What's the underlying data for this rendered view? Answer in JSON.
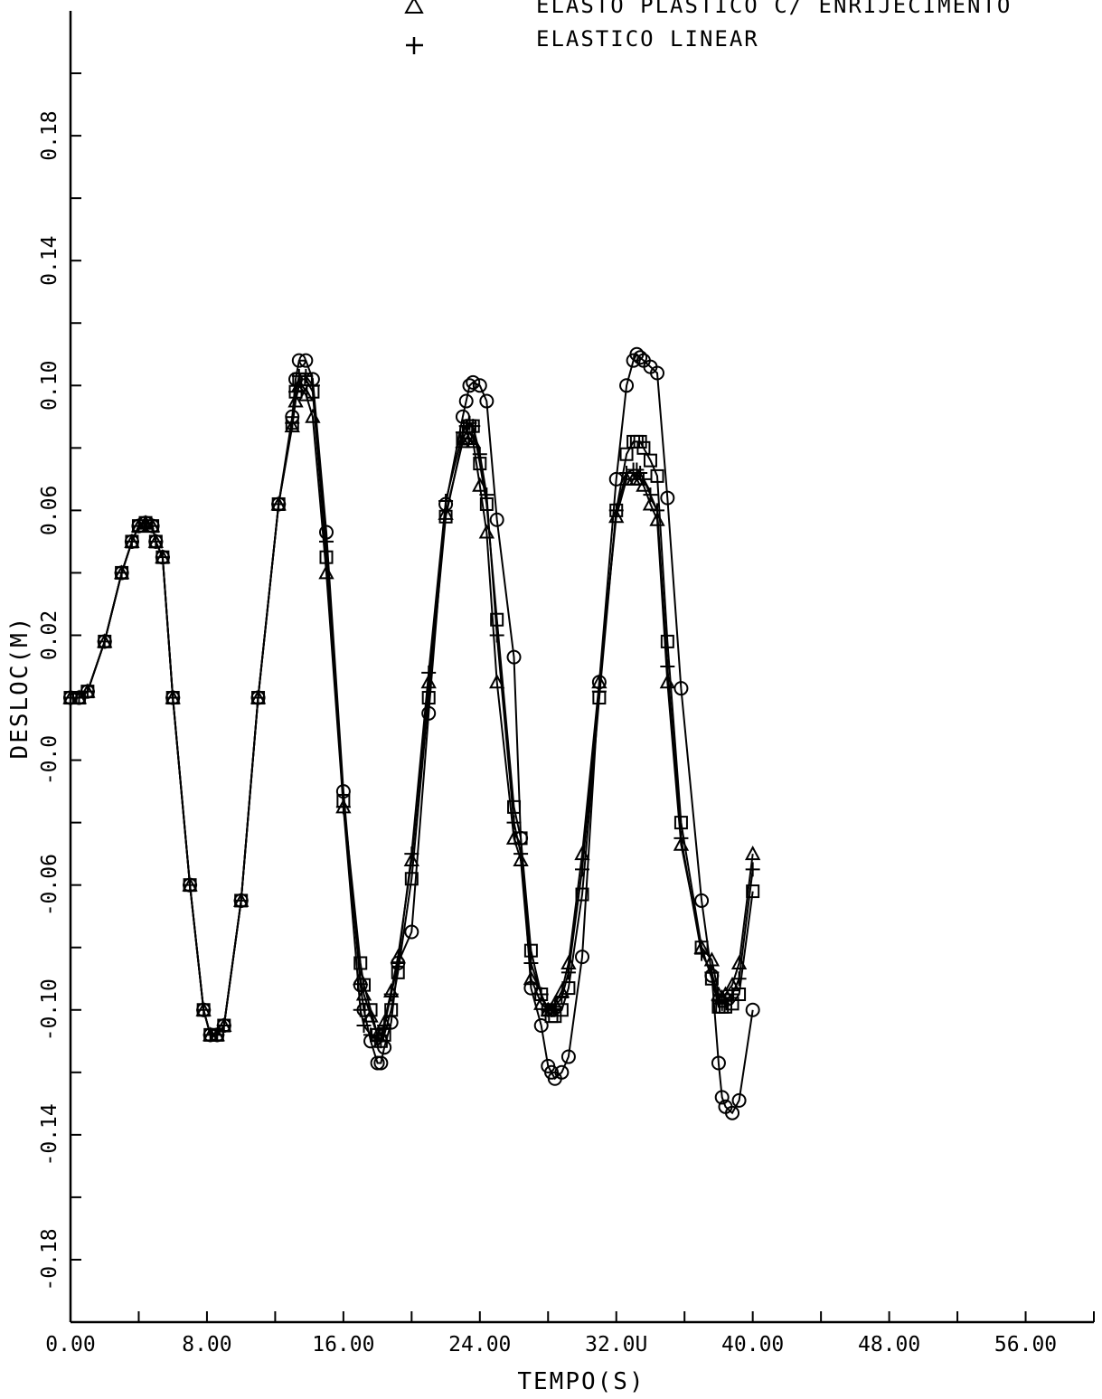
{
  "chart_data": {
    "type": "line",
    "title": "",
    "xlabel": "TEMPO(S)",
    "ylabel": "DESLOC(M)",
    "xlim": [
      0,
      60
    ],
    "ylim": [
      -0.2,
      0.22
    ],
    "grid": false,
    "legend_placement": "top-center",
    "x_ticks": [
      {
        "value": 0,
        "label": "0.00"
      },
      {
        "value": 8,
        "label": "8.00"
      },
      {
        "value": 16,
        "label": "16.00"
      },
      {
        "value": 24,
        "label": "24.00"
      },
      {
        "value": 32,
        "label": "32.0U"
      },
      {
        "value": 40,
        "label": "40.00"
      },
      {
        "value": 48,
        "label": "48.00"
      },
      {
        "value": 56,
        "label": "56.00"
      }
    ],
    "x_minor_ticks": [
      4,
      12,
      20,
      28,
      36,
      44,
      52,
      60
    ],
    "y_ticks": [
      {
        "value": 0.18,
        "label": "0.18"
      },
      {
        "value": 0.14,
        "label": "0.14"
      },
      {
        "value": 0.1,
        "label": "0.10"
      },
      {
        "value": 0.06,
        "label": "0.06"
      },
      {
        "value": 0.02,
        "label": "0.02"
      },
      {
        "value": -0.02,
        "label": "-0.0"
      },
      {
        "value": -0.06,
        "label": "-0.06"
      },
      {
        "value": -0.1,
        "label": "-0.10"
      },
      {
        "value": -0.14,
        "label": "-0.14"
      },
      {
        "value": -0.18,
        "label": "-0.18"
      }
    ],
    "y_minor_ticks": [
      0.2,
      0.16,
      0.12,
      0.08,
      0.04,
      0.0,
      -0.04,
      -0.08,
      -0.12,
      -0.16
    ],
    "series": [
      {
        "name": "",
        "marker": "circle",
        "color": "#000000",
        "x": [
          0,
          0.5,
          1,
          2,
          3,
          3.6,
          4,
          4.4,
          4.8,
          5,
          5.4,
          6,
          7,
          7.8,
          8.2,
          8.6,
          9,
          10,
          11,
          12.2,
          13,
          13.2,
          13.4,
          13.8,
          14.2,
          15,
          16,
          17,
          17.2,
          17.6,
          18,
          18.2,
          18.4,
          18.8,
          19.2,
          20,
          21,
          22,
          23,
          23.2,
          23.4,
          23.6,
          24,
          24.4,
          25,
          26,
          26.4,
          27,
          27.6,
          28,
          28.2,
          28.4,
          28.8,
          29.2,
          30,
          31,
          32,
          32.6,
          33,
          33.2,
          33.4,
          33.6,
          34,
          34.4,
          35,
          35.8,
          37,
          37.6,
          38,
          38.2,
          38.4,
          38.8,
          39.2,
          40
        ],
        "y": [
          0,
          0,
          0.002,
          0.018,
          0.04,
          0.05,
          0.055,
          0.056,
          0.055,
          0.05,
          0.045,
          0,
          -0.06,
          -0.1,
          -0.108,
          -0.108,
          -0.105,
          -0.065,
          0,
          0.062,
          0.09,
          0.102,
          0.108,
          0.108,
          0.102,
          0.053,
          -0.03,
          -0.092,
          -0.1,
          -0.11,
          -0.117,
          -0.117,
          -0.112,
          -0.104,
          -0.085,
          -0.075,
          -0.005,
          0.062,
          0.09,
          0.095,
          0.1,
          0.101,
          0.1,
          0.095,
          0.057,
          0.013,
          -0.045,
          -0.093,
          -0.105,
          -0.118,
          -0.12,
          -0.122,
          -0.12,
          -0.115,
          -0.083,
          0.005,
          0.07,
          0.1,
          0.108,
          0.11,
          0.109,
          0.108,
          0.106,
          0.104,
          0.064,
          0.003,
          -0.065,
          -0.089,
          -0.117,
          -0.128,
          -0.131,
          -0.133,
          -0.129,
          -0.1
        ]
      },
      {
        "name": "",
        "marker": "square",
        "color": "#000000",
        "x": [
          0,
          0.5,
          1,
          2,
          3,
          3.6,
          4,
          4.4,
          4.8,
          5,
          5.4,
          6,
          7,
          7.8,
          8.2,
          8.6,
          9,
          10,
          11,
          12.2,
          13,
          13.2,
          13.4,
          13.8,
          14.2,
          15,
          16,
          17,
          17.2,
          17.6,
          18,
          18.2,
          18.4,
          18.8,
          19.2,
          20,
          21,
          22,
          23,
          23.2,
          23.4,
          23.6,
          24,
          24.4,
          25,
          26,
          26.4,
          27,
          27.6,
          28,
          28.2,
          28.4,
          28.8,
          29.2,
          30,
          31,
          32,
          32.6,
          33,
          33.2,
          33.4,
          33.6,
          34,
          34.4,
          35,
          35.8,
          37,
          37.6,
          38,
          38.2,
          38.4,
          38.8,
          39.2,
          40
        ],
        "y": [
          0,
          0,
          0.002,
          0.018,
          0.04,
          0.05,
          0.055,
          0.056,
          0.055,
          0.05,
          0.045,
          0,
          -0.06,
          -0.1,
          -0.108,
          -0.108,
          -0.105,
          -0.065,
          0,
          0.062,
          0.088,
          0.098,
          0.102,
          0.102,
          0.098,
          0.045,
          -0.033,
          -0.085,
          -0.092,
          -0.1,
          -0.108,
          -0.11,
          -0.108,
          -0.1,
          -0.088,
          -0.058,
          0,
          0.058,
          0.083,
          0.085,
          0.087,
          0.087,
          0.075,
          0.062,
          0.025,
          -0.035,
          -0.045,
          -0.081,
          -0.095,
          -0.1,
          -0.102,
          -0.102,
          -0.1,
          -0.093,
          -0.063,
          0,
          0.06,
          0.078,
          0.082,
          0.082,
          0.082,
          0.08,
          0.076,
          0.071,
          0.018,
          -0.04,
          -0.08,
          -0.09,
          -0.099,
          -0.099,
          -0.099,
          -0.098,
          -0.095,
          -0.062
        ]
      },
      {
        "name": "ELASTO PLASTICO C/ ENRIJECIMENTO",
        "marker": "triangle",
        "color": "#000000",
        "x": [
          0,
          0.5,
          1,
          2,
          3,
          3.6,
          4,
          4.4,
          4.8,
          5,
          5.4,
          6,
          7,
          7.8,
          8.2,
          8.6,
          9,
          10,
          11,
          12.2,
          13,
          13.2,
          13.4,
          13.8,
          14.2,
          15,
          16,
          17,
          17.2,
          17.6,
          18,
          18.2,
          18.4,
          18.8,
          19.2,
          20,
          21,
          22,
          23,
          23.2,
          23.4,
          23.6,
          24,
          24.4,
          25,
          26,
          26.4,
          27,
          27.6,
          28,
          28.2,
          28.4,
          28.8,
          29.2,
          30,
          31,
          32,
          32.6,
          33,
          33.2,
          33.4,
          33.6,
          34,
          34.4,
          35,
          35.8,
          37,
          37.6,
          38,
          38.2,
          38.4,
          38.8,
          39.2,
          40
        ],
        "y": [
          0,
          0,
          0.002,
          0.018,
          0.04,
          0.05,
          0.055,
          0.056,
          0.055,
          0.05,
          0.045,
          0,
          -0.06,
          -0.1,
          -0.108,
          -0.108,
          -0.105,
          -0.065,
          0,
          0.062,
          0.087,
          0.095,
          0.1,
          0.097,
          0.09,
          0.04,
          -0.035,
          -0.09,
          -0.095,
          -0.102,
          -0.108,
          -0.108,
          -0.104,
          -0.094,
          -0.083,
          -0.052,
          0.005,
          0.059,
          0.082,
          0.083,
          0.083,
          0.082,
          0.068,
          0.053,
          0.005,
          -0.045,
          -0.052,
          -0.09,
          -0.098,
          -0.1,
          -0.1,
          -0.098,
          -0.094,
          -0.085,
          -0.05,
          0.005,
          0.058,
          0.07,
          0.07,
          0.07,
          0.07,
          0.068,
          0.062,
          0.057,
          0.005,
          -0.047,
          -0.08,
          -0.084,
          -0.095,
          -0.096,
          -0.095,
          -0.092,
          -0.085,
          -0.05
        ]
      },
      {
        "name": "ELASTICO LINEAR",
        "marker": "plus",
        "color": "#000000",
        "x": [
          0,
          0.5,
          1,
          2,
          3,
          3.6,
          4,
          4.4,
          4.8,
          5,
          5.4,
          6,
          7,
          7.8,
          8.2,
          8.6,
          9,
          10,
          11,
          12.2,
          13,
          13.2,
          13.4,
          13.8,
          14.2,
          15,
          16,
          17,
          17.2,
          17.6,
          18,
          18.2,
          18.4,
          18.8,
          19.2,
          20,
          21,
          22,
          23,
          23.2,
          23.4,
          23.6,
          24,
          24.4,
          25,
          26,
          26.4,
          27,
          27.6,
          28,
          28.2,
          28.4,
          28.8,
          29.2,
          30,
          31,
          32,
          32.6,
          33,
          33.2,
          33.4,
          33.6,
          34,
          34.4,
          35,
          35.8,
          37,
          37.6,
          38,
          38.2,
          38.4,
          38.8,
          39.2,
          40
        ],
        "y": [
          0,
          0,
          0.002,
          0.018,
          0.04,
          0.05,
          0.055,
          0.056,
          0.055,
          0.05,
          0.045,
          0,
          -0.06,
          -0.1,
          -0.108,
          -0.108,
          -0.105,
          -0.065,
          0,
          0.062,
          0.088,
          0.098,
          0.103,
          0.103,
          0.1,
          0.05,
          -0.035,
          -0.1,
          -0.105,
          -0.108,
          -0.11,
          -0.11,
          -0.105,
          -0.095,
          -0.085,
          -0.05,
          0.008,
          0.063,
          0.085,
          0.087,
          0.088,
          0.087,
          0.078,
          0.065,
          0.02,
          -0.04,
          -0.05,
          -0.085,
          -0.095,
          -0.1,
          -0.1,
          -0.099,
          -0.096,
          -0.088,
          -0.055,
          0.002,
          0.06,
          0.072,
          0.073,
          0.073,
          0.072,
          0.07,
          0.065,
          0.06,
          0.01,
          -0.045,
          -0.082,
          -0.088,
          -0.097,
          -0.098,
          -0.097,
          -0.095,
          -0.09,
          -0.055
        ]
      }
    ]
  }
}
